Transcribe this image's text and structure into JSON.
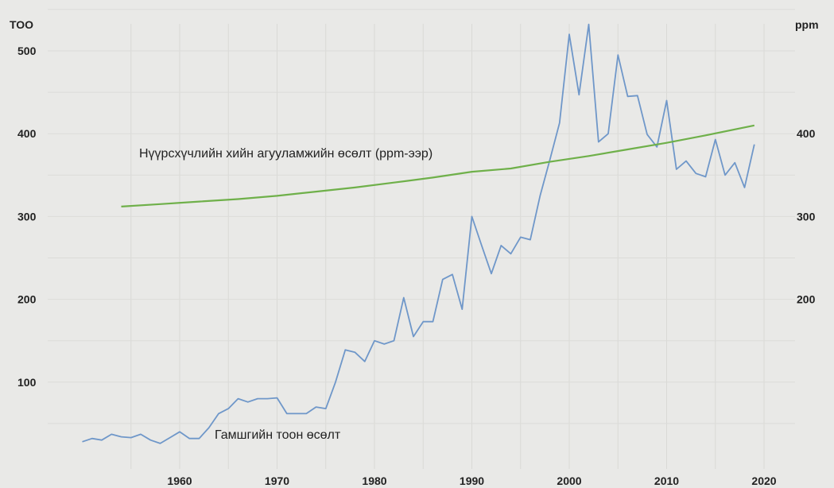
{
  "chart_data": {
    "type": "line",
    "left_axis_label": "ТОО",
    "right_axis_label": "ppm",
    "x_ticks": [
      1960,
      1970,
      1980,
      1990,
      2000,
      2010,
      2020
    ],
    "x_range": [
      1950,
      2020
    ],
    "left_ticks": [
      100,
      200,
      300,
      400,
      500
    ],
    "left_range": [
      0,
      550
    ],
    "right_ticks": [
      200,
      300,
      400
    ],
    "right_range": [
      0,
      550
    ],
    "grid": true,
    "series": [
      {
        "name": "Гамшгийн тоон өсөлт",
        "axis": "left",
        "color": "#6f97c9",
        "x": [
          1950,
          1951,
          1952,
          1953,
          1954,
          1955,
          1956,
          1957,
          1958,
          1959,
          1960,
          1961,
          1962,
          1963,
          1964,
          1965,
          1966,
          1967,
          1968,
          1969,
          1970,
          1971,
          1972,
          1973,
          1974,
          1975,
          1976,
          1977,
          1978,
          1979,
          1980,
          1981,
          1982,
          1983,
          1984,
          1985,
          1986,
          1987,
          1988,
          1989,
          1990,
          1991,
          1992,
          1993,
          1994,
          1995,
          1996,
          1997,
          1998,
          1999,
          2000,
          2001,
          2002,
          2003,
          2004,
          2005,
          2006,
          2007,
          2008,
          2009,
          2010,
          2011,
          2012,
          2013,
          2014,
          2015,
          2016,
          2017,
          2018,
          2019
        ],
        "values": [
          28,
          32,
          30,
          37,
          34,
          33,
          37,
          30,
          26,
          33,
          40,
          32,
          32,
          45,
          62,
          68,
          80,
          76,
          80,
          80,
          81,
          62,
          62,
          62,
          70,
          68,
          100,
          139,
          136,
          125,
          150,
          146,
          150,
          202,
          155,
          173,
          173,
          224,
          230,
          188,
          300,
          265,
          231,
          265,
          255,
          275,
          272,
          325,
          368,
          413,
          520,
          447,
          532,
          390,
          400,
          495,
          445,
          446,
          399,
          384,
          440,
          357,
          367,
          352,
          348,
          393,
          350,
          365,
          335,
          387
        ]
      },
      {
        "name": "Нүүрсхүчлийн хийн агууламжийн өсөлт (ppm-ээр)",
        "axis": "right",
        "color": "#6fb04a",
        "x": [
          1954,
          1958,
          1962,
          1966,
          1970,
          1974,
          1978,
          1982,
          1986,
          1990,
          1994,
          1998,
          2002,
          2006,
          2010,
          2014,
          2019
        ],
        "values": [
          312,
          315,
          318,
          321,
          325,
          330,
          335,
          341,
          347,
          354,
          358,
          366,
          373,
          381,
          389,
          398,
          410
        ]
      }
    ],
    "annotations": [
      {
        "text": "Нүүрсхүчлийн хийн агууламжийн өсөлт (ppm-ээр)",
        "series": 1
      },
      {
        "text": "Гамшгийн тоон өсөлт",
        "series": 0
      }
    ]
  }
}
